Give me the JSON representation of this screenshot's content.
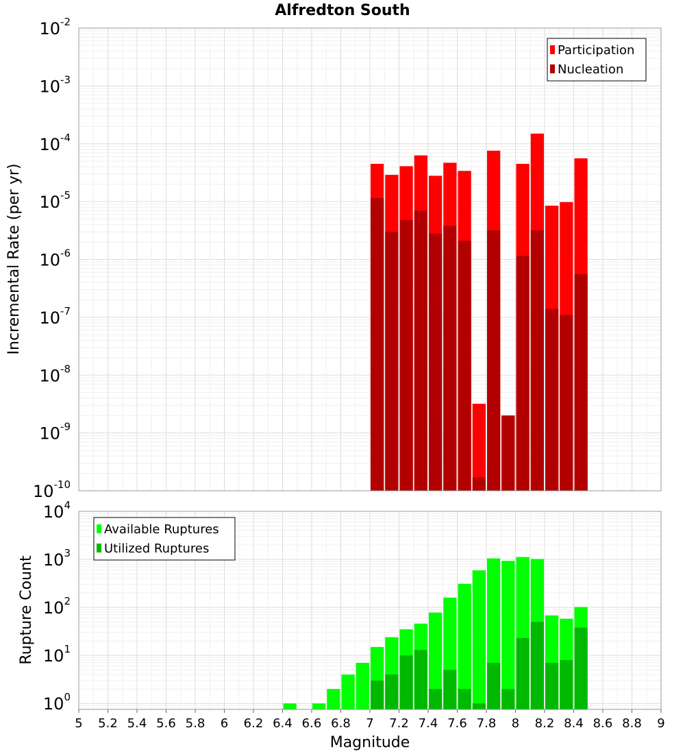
{
  "chart_data": [
    {
      "type": "bar",
      "title": "Alfredton South",
      "xlabel": "",
      "ylabel": "Incremental Rate (per yr)",
      "yscale": "log",
      "ylim": [
        1e-10,
        0.01
      ],
      "xlim": [
        5,
        9
      ],
      "grid": true,
      "legend_position": "top-right",
      "y_ticks": [
        {
          "base": "10",
          "exp": "-10"
        },
        {
          "base": "10",
          "exp": "-9"
        },
        {
          "base": "10",
          "exp": "-8"
        },
        {
          "base": "10",
          "exp": "-7"
        },
        {
          "base": "10",
          "exp": "-6"
        },
        {
          "base": "10",
          "exp": "-5"
        },
        {
          "base": "10",
          "exp": "-4"
        },
        {
          "base": "10",
          "exp": "-3"
        },
        {
          "base": "10",
          "exp": "-2"
        }
      ],
      "x": [
        7.05,
        7.15,
        7.25,
        7.35,
        7.45,
        7.55,
        7.65,
        7.75,
        7.85,
        7.95,
        8.05,
        8.15,
        8.25,
        8.35,
        8.45
      ],
      "series": [
        {
          "name": "Participation",
          "color": "#ff0000",
          "values": [
            4.5e-05,
            2.9e-05,
            4.1e-05,
            6.3e-05,
            2.8e-05,
            4.7e-05,
            3.4e-05,
            3.2e-09,
            7.6e-05,
            2e-09,
            4.5e-05,
            0.00015,
            8.5e-06,
            9.8e-06,
            5.6e-05
          ]
        },
        {
          "name": "Nucleation",
          "color": "#b20000",
          "values": [
            1.15e-05,
            3e-06,
            4.8e-06,
            7e-06,
            2.8e-06,
            3.8e-06,
            2.1e-06,
            1.7e-10,
            3.2e-06,
            2e-09,
            1.15e-06,
            3.2e-06,
            1.4e-07,
            1.1e-07,
            5.6e-07
          ]
        }
      ]
    },
    {
      "type": "bar",
      "title": "",
      "xlabel": "Magnitude",
      "ylabel": "Rupture Count",
      "yscale": "log",
      "ylim": [
        0.75,
        10000
      ],
      "xlim": [
        5,
        9
      ],
      "grid": true,
      "legend_position": "top-left",
      "y_ticks": [
        {
          "base": "10",
          "exp": "0"
        },
        {
          "base": "10",
          "exp": "1"
        },
        {
          "base": "10",
          "exp": "2"
        },
        {
          "base": "10",
          "exp": "3"
        },
        {
          "base": "10",
          "exp": "4"
        }
      ],
      "x_ticks": [
        "5",
        "5.2",
        "5.4",
        "5.6",
        "5.8",
        "6",
        "6.2",
        "6.4",
        "6.6",
        "6.8",
        "7",
        "7.2",
        "7.4",
        "7.6",
        "7.8",
        "8",
        "8.2",
        "8.4",
        "8.6",
        "8.8",
        "9"
      ],
      "x": [
        6.45,
        6.55,
        6.65,
        6.75,
        6.85,
        6.95,
        7.05,
        7.15,
        7.25,
        7.35,
        7.45,
        7.55,
        7.65,
        7.75,
        7.85,
        7.95,
        8.05,
        8.15,
        8.25,
        8.35,
        8.45
      ],
      "series": [
        {
          "name": "Available Ruptures",
          "color": "#00ff00",
          "values": [
            1,
            0,
            1,
            2,
            4,
            7,
            15,
            24,
            35,
            46,
            78,
            160,
            310,
            590,
            1050,
            930,
            1120,
            1020,
            68,
            58,
            102
          ]
        },
        {
          "name": "Utilized Ruptures",
          "color": "#00b800",
          "values": [
            0,
            0,
            0,
            0,
            0,
            0,
            3,
            4,
            10,
            13,
            2,
            5,
            2,
            1,
            7,
            2,
            23,
            50,
            7,
            8,
            38
          ]
        }
      ]
    }
  ]
}
